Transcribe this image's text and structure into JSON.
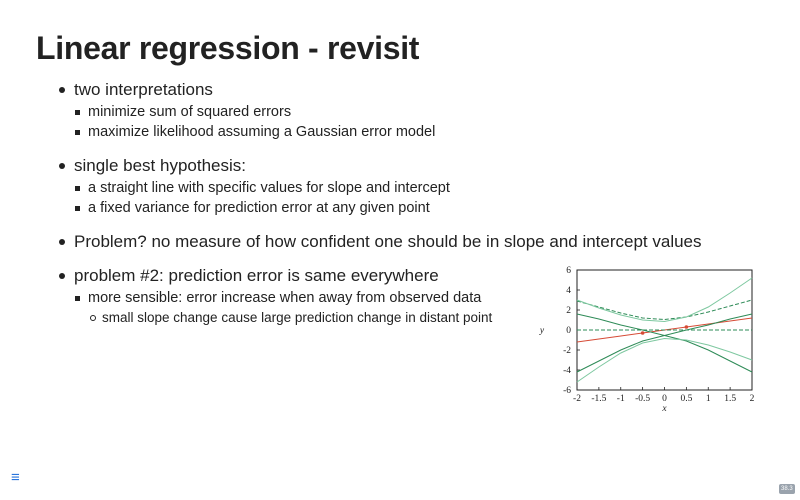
{
  "title": "Linear regression - revisit",
  "bullets": {
    "b1": "two interpretations",
    "b1a": "minimize sum of squared errors",
    "b1b": "maximize likelihood assuming a Gaussian error model",
    "b2": "single best hypothesis:",
    "b2a": "a straight line with specific values for slope and intercept",
    "b2b": "a fixed variance for prediction error at any given point",
    "b3": "Problem? no measure of how confident one should be in slope and intercept values",
    "b4": "problem #2: prediction error is same everywhere",
    "b4a": "more sensible: error increase when away from observed data",
    "b4a1": "small slope change cause large prediction change in distant point"
  },
  "chart_data": {
    "type": "line",
    "xlabel": "x",
    "ylabel": "y",
    "xlim": [
      -2,
      2
    ],
    "ylim": [
      -6,
      6
    ],
    "x_ticks": [
      "-2",
      "-1.5",
      "-1",
      "-0.5",
      "0",
      "0.5",
      "1",
      "1.5",
      "2"
    ],
    "y_ticks": [
      "-6",
      "-4",
      "-2",
      "0",
      "2",
      "4",
      "6"
    ],
    "x": [
      -2,
      -1.5,
      -1,
      -0.5,
      0,
      0.5,
      1,
      1.5,
      2
    ],
    "series": [
      {
        "values": [
          -1.2,
          -0.9,
          -0.6,
          -0.3,
          0.0,
          0.3,
          0.6,
          0.9,
          1.2
        ],
        "color": "#d64b36"
      },
      {
        "values": [
          0.0,
          0.0,
          0.0,
          0.0,
          0.0,
          0.0,
          0.0,
          0.0,
          0.0
        ],
        "color": "#2e8b57",
        "dashed": true
      },
      {
        "values": [
          2.9,
          2.3,
          1.7,
          1.2,
          1.05,
          1.3,
          1.8,
          2.4,
          3.0
        ],
        "color": "#2e8b57",
        "dashed": true
      },
      {
        "values": [
          -4.2,
          -3.1,
          -2.0,
          -1.1,
          -0.55,
          0.0,
          0.5,
          1.1,
          1.6
        ],
        "color": "#2e8b57"
      },
      {
        "values": [
          1.6,
          1.1,
          0.5,
          0.0,
          -0.55,
          -1.1,
          -2.0,
          -3.1,
          -4.2
        ],
        "color": "#2e8b57"
      },
      {
        "values": [
          3.0,
          2.2,
          1.5,
          1.0,
          0.85,
          1.3,
          2.3,
          3.7,
          5.2
        ],
        "color": "#7ec8a0"
      },
      {
        "values": [
          -5.2,
          -3.7,
          -2.3,
          -1.3,
          -0.85,
          -1.0,
          -1.5,
          -2.2,
          -3.0
        ],
        "color": "#7ec8a0"
      }
    ],
    "points": [
      {
        "x": -0.5,
        "y": -0.3
      },
      {
        "x": 0.5,
        "y": 0.3
      }
    ],
    "grid": false
  },
  "footer": {
    "menu_icon": "≡",
    "slide_number": "38.3"
  }
}
